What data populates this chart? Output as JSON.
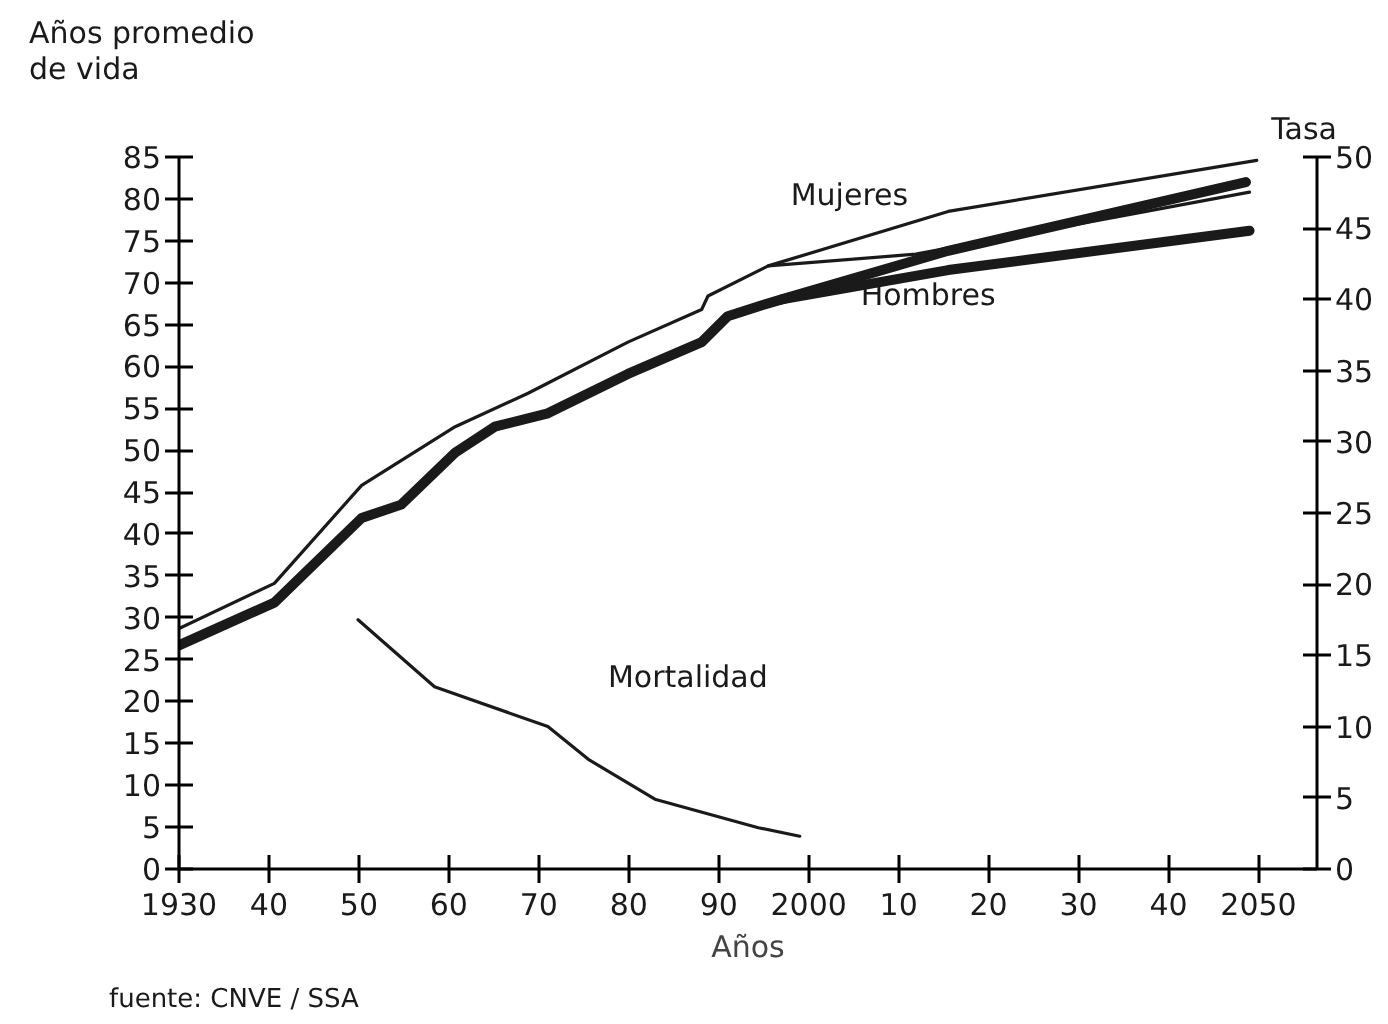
{
  "chart_data": {
    "type": "line",
    "xlabel": "Años",
    "ylabel": "Años promedio de vida",
    "y2label": "Tasa",
    "annotations": [
      "fuente: CNVE / SSA"
    ],
    "xlim": [
      1930,
      2056.5
    ],
    "ylim": [
      0,
      85
    ],
    "y2lim": [
      0,
      50
    ],
    "xticks": [
      {
        "value": 1930,
        "label": "1930"
      },
      {
        "value": 1940,
        "label": "40"
      },
      {
        "value": 1950,
        "label": "50"
      },
      {
        "value": 1960,
        "label": "60"
      },
      {
        "value": 1970,
        "label": "70"
      },
      {
        "value": 1980,
        "label": "80"
      },
      {
        "value": 1990,
        "label": "90"
      },
      {
        "value": 2000,
        "label": "2000"
      },
      {
        "value": 2010,
        "label": "10"
      },
      {
        "value": 2020,
        "label": "20"
      },
      {
        "value": 2030,
        "label": "30"
      },
      {
        "value": 2040,
        "label": "40"
      },
      {
        "value": 2050,
        "label": "2050"
      }
    ],
    "yticks": [
      0,
      5,
      10,
      15,
      20,
      25,
      30,
      35,
      40,
      45,
      50,
      55,
      60,
      65,
      70,
      75,
      80,
      85
    ],
    "y2ticks": [
      0,
      5,
      10,
      15,
      20,
      25,
      30,
      35,
      40,
      45,
      50
    ],
    "grid": false,
    "marker": "none",
    "line_style": "solid",
    "series": [
      {
        "name": "Mujeres",
        "color": "#1a1a1a",
        "x": [
          1930,
          1940.6,
          1950.3,
          1960.7,
          1968.8,
          1979.9,
          1988.1,
          1988.8,
          1995.5,
          2015.5,
          2049.8
        ],
        "values": [
          28.7,
          34.1,
          45.8,
          52.8,
          56.8,
          62.9,
          66.8,
          68.4,
          72,
          78.5,
          84.6
        ]
      },
      {
        "color": "#1a1a1a",
        "x": [
          1995.5,
          2011.9,
          2049
        ],
        "values": [
          72,
          73.4,
          80.8
        ]
      },
      {
        "name": "Hombres",
        "color": "#1a1a1a",
        "x": [
          1930,
          1940.6,
          1950.3,
          1954.7,
          1960.7,
          1965.1,
          1971,
          1979.9,
          1988.1,
          1991,
          1994.8,
          1997,
          2015.5,
          2048.6
        ],
        "values": [
          26.7,
          31.8,
          41.9,
          43.5,
          49.7,
          52.8,
          54.4,
          59.1,
          62.9,
          66,
          67.3,
          68,
          73.8,
          82
        ]
      },
      {
        "color": "#1a1a1a",
        "x": [
          1997,
          2015.5,
          2049
        ],
        "values": [
          68,
          71.5,
          76.2
        ]
      },
      {
        "name": "Mortalidad",
        "color": "#1a1a1a",
        "axis": "y2",
        "x": [
          1949.9,
          1958.4,
          1971,
          1975.5,
          1982.9,
          1994.4,
          1999
        ],
        "values": [
          17.5,
          12.8,
          10,
          7.7,
          4.9,
          2.9,
          2.3
        ]
      }
    ]
  }
}
